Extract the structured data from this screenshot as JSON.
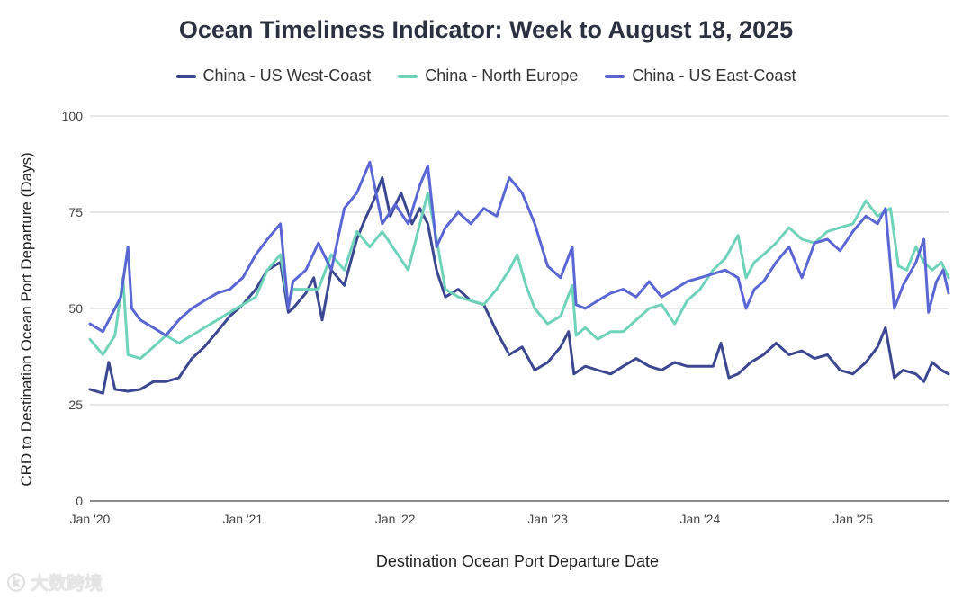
{
  "chart_data": {
    "type": "line",
    "title": "Ocean Timeliness Indicator: Week to August 18, 2025",
    "xlabel": "Destination Ocean Port Departure Date",
    "ylabel": "CRD to Destination Ocean Port Departure (Days)",
    "ylim": [
      0,
      100
    ],
    "yticks": [
      0,
      25,
      50,
      75,
      100
    ],
    "xlim": [
      "2020-01-01",
      "2025-08-18"
    ],
    "xticks": [
      {
        "date": "2020-01-01",
        "label": "Jan '20"
      },
      {
        "date": "2021-01-01",
        "label": "Jan '21"
      },
      {
        "date": "2022-01-01",
        "label": "Jan '22"
      },
      {
        "date": "2023-01-01",
        "label": "Jan '23"
      },
      {
        "date": "2024-01-01",
        "label": "Jan '24"
      },
      {
        "date": "2025-01-01",
        "label": "Jan '25"
      }
    ],
    "grid": true,
    "legend_position": "top",
    "series": [
      {
        "name": "China - US West-Coast",
        "color": "#3b4891",
        "points": [
          [
            "2020-01-01",
            29
          ],
          [
            "2020-02-01",
            28
          ],
          [
            "2020-02-15",
            36
          ],
          [
            "2020-03-01",
            29
          ],
          [
            "2020-04-01",
            28.5
          ],
          [
            "2020-05-01",
            29
          ],
          [
            "2020-06-01",
            31
          ],
          [
            "2020-07-01",
            31
          ],
          [
            "2020-08-01",
            32
          ],
          [
            "2020-09-01",
            37
          ],
          [
            "2020-10-01",
            40
          ],
          [
            "2020-11-01",
            44
          ],
          [
            "2020-12-01",
            48
          ],
          [
            "2021-01-01",
            51
          ],
          [
            "2021-02-01",
            55
          ],
          [
            "2021-03-01",
            60
          ],
          [
            "2021-04-01",
            62
          ],
          [
            "2021-04-20",
            49
          ],
          [
            "2021-05-01",
            50
          ],
          [
            "2021-06-01",
            54
          ],
          [
            "2021-06-20",
            58
          ],
          [
            "2021-07-10",
            47
          ],
          [
            "2021-08-01",
            60
          ],
          [
            "2021-09-01",
            56
          ],
          [
            "2021-10-01",
            68
          ],
          [
            "2021-10-20",
            73
          ],
          [
            "2021-11-10",
            78
          ],
          [
            "2021-12-01",
            84
          ],
          [
            "2021-12-20",
            74
          ],
          [
            "2022-01-15",
            80
          ],
          [
            "2022-02-10",
            72
          ],
          [
            "2022-03-01",
            76
          ],
          [
            "2022-03-20",
            72
          ],
          [
            "2022-04-10",
            60
          ],
          [
            "2022-05-01",
            53
          ],
          [
            "2022-06-01",
            55
          ],
          [
            "2022-07-01",
            52
          ],
          [
            "2022-08-01",
            51
          ],
          [
            "2022-09-01",
            44
          ],
          [
            "2022-10-01",
            38
          ],
          [
            "2022-11-01",
            40
          ],
          [
            "2022-12-01",
            34
          ],
          [
            "2023-01-01",
            36
          ],
          [
            "2023-02-01",
            40
          ],
          [
            "2023-02-20",
            44
          ],
          [
            "2023-03-05",
            33
          ],
          [
            "2023-04-01",
            35
          ],
          [
            "2023-05-01",
            34
          ],
          [
            "2023-06-01",
            33
          ],
          [
            "2023-07-01",
            35
          ],
          [
            "2023-08-01",
            37
          ],
          [
            "2023-09-01",
            35
          ],
          [
            "2023-10-01",
            34
          ],
          [
            "2023-11-01",
            36
          ],
          [
            "2023-12-01",
            35
          ],
          [
            "2024-01-01",
            35
          ],
          [
            "2024-02-01",
            35
          ],
          [
            "2024-02-20",
            41
          ],
          [
            "2024-03-10",
            32
          ],
          [
            "2024-04-01",
            33
          ],
          [
            "2024-05-01",
            36
          ],
          [
            "2024-06-01",
            38
          ],
          [
            "2024-07-01",
            41
          ],
          [
            "2024-08-01",
            38
          ],
          [
            "2024-09-01",
            39
          ],
          [
            "2024-10-01",
            37
          ],
          [
            "2024-11-01",
            38
          ],
          [
            "2024-12-01",
            34
          ],
          [
            "2025-01-01",
            33
          ],
          [
            "2025-02-01",
            36
          ],
          [
            "2025-03-01",
            40
          ],
          [
            "2025-03-20",
            45
          ],
          [
            "2025-04-10",
            32
          ],
          [
            "2025-05-01",
            34
          ],
          [
            "2025-06-01",
            33
          ],
          [
            "2025-06-20",
            31
          ],
          [
            "2025-07-10",
            36
          ],
          [
            "2025-08-01",
            34
          ],
          [
            "2025-08-18",
            33
          ]
        ]
      },
      {
        "name": "China - North Europe",
        "color": "#6ed3b9",
        "points": [
          [
            "2020-01-01",
            42
          ],
          [
            "2020-02-01",
            38
          ],
          [
            "2020-03-01",
            43
          ],
          [
            "2020-03-20",
            58
          ],
          [
            "2020-04-01",
            38
          ],
          [
            "2020-05-01",
            37
          ],
          [
            "2020-06-01",
            40
          ],
          [
            "2020-07-01",
            43
          ],
          [
            "2020-08-01",
            41
          ],
          [
            "2020-09-01",
            43
          ],
          [
            "2020-10-01",
            45
          ],
          [
            "2020-11-01",
            47
          ],
          [
            "2020-12-01",
            49
          ],
          [
            "2021-01-01",
            51
          ],
          [
            "2021-02-01",
            53
          ],
          [
            "2021-03-01",
            60
          ],
          [
            "2021-04-01",
            64
          ],
          [
            "2021-04-20",
            51
          ],
          [
            "2021-05-01",
            55
          ],
          [
            "2021-06-01",
            55
          ],
          [
            "2021-07-01",
            55
          ],
          [
            "2021-08-01",
            64
          ],
          [
            "2021-09-01",
            60
          ],
          [
            "2021-10-01",
            70
          ],
          [
            "2021-11-01",
            66
          ],
          [
            "2021-12-01",
            70
          ],
          [
            "2022-01-01",
            65
          ],
          [
            "2022-02-01",
            60
          ],
          [
            "2022-03-01",
            72
          ],
          [
            "2022-03-20",
            80
          ],
          [
            "2022-04-10",
            68
          ],
          [
            "2022-05-01",
            55
          ],
          [
            "2022-06-01",
            53
          ],
          [
            "2022-07-01",
            52
          ],
          [
            "2022-08-01",
            51
          ],
          [
            "2022-09-01",
            55
          ],
          [
            "2022-10-01",
            60
          ],
          [
            "2022-10-20",
            64
          ],
          [
            "2022-11-10",
            56
          ],
          [
            "2022-12-01",
            50
          ],
          [
            "2023-01-01",
            46
          ],
          [
            "2023-02-01",
            48
          ],
          [
            "2023-03-01",
            56
          ],
          [
            "2023-03-10",
            43
          ],
          [
            "2023-04-01",
            45
          ],
          [
            "2023-05-01",
            42
          ],
          [
            "2023-06-01",
            44
          ],
          [
            "2023-07-01",
            44
          ],
          [
            "2023-08-01",
            47
          ],
          [
            "2023-09-01",
            50
          ],
          [
            "2023-10-01",
            51
          ],
          [
            "2023-11-01",
            46
          ],
          [
            "2023-12-01",
            52
          ],
          [
            "2024-01-01",
            55
          ],
          [
            "2024-02-01",
            60
          ],
          [
            "2024-03-01",
            63
          ],
          [
            "2024-04-01",
            69
          ],
          [
            "2024-04-20",
            58
          ],
          [
            "2024-05-10",
            62
          ],
          [
            "2024-06-01",
            64
          ],
          [
            "2024-07-01",
            67
          ],
          [
            "2024-08-01",
            71
          ],
          [
            "2024-09-01",
            68
          ],
          [
            "2024-10-01",
            67
          ],
          [
            "2024-11-01",
            70
          ],
          [
            "2024-12-01",
            71
          ],
          [
            "2025-01-01",
            72
          ],
          [
            "2025-02-01",
            78
          ],
          [
            "2025-03-01",
            74
          ],
          [
            "2025-04-01",
            76
          ],
          [
            "2025-04-20",
            61
          ],
          [
            "2025-05-10",
            60
          ],
          [
            "2025-06-01",
            66
          ],
          [
            "2025-06-20",
            62
          ],
          [
            "2025-07-10",
            60
          ],
          [
            "2025-08-01",
            62
          ],
          [
            "2025-08-18",
            58
          ]
        ]
      },
      {
        "name": "China - US East-Coast",
        "color": "#5a66d3",
        "points": [
          [
            "2020-01-01",
            46
          ],
          [
            "2020-02-01",
            44
          ],
          [
            "2020-03-01",
            50
          ],
          [
            "2020-03-15",
            53
          ],
          [
            "2020-04-01",
            66
          ],
          [
            "2020-04-10",
            50
          ],
          [
            "2020-05-01",
            47
          ],
          [
            "2020-06-01",
            45
          ],
          [
            "2020-07-01",
            43
          ],
          [
            "2020-08-01",
            47
          ],
          [
            "2020-09-01",
            50
          ],
          [
            "2020-10-01",
            52
          ],
          [
            "2020-11-01",
            54
          ],
          [
            "2020-12-01",
            55
          ],
          [
            "2021-01-01",
            58
          ],
          [
            "2021-02-01",
            64
          ],
          [
            "2021-03-01",
            68
          ],
          [
            "2021-04-01",
            72
          ],
          [
            "2021-04-20",
            50
          ],
          [
            "2021-05-01",
            57
          ],
          [
            "2021-06-01",
            60
          ],
          [
            "2021-07-01",
            67
          ],
          [
            "2021-08-01",
            60
          ],
          [
            "2021-09-01",
            76
          ],
          [
            "2021-10-01",
            80
          ],
          [
            "2021-11-01",
            88
          ],
          [
            "2021-12-01",
            72
          ],
          [
            "2022-01-01",
            77
          ],
          [
            "2022-02-01",
            72
          ],
          [
            "2022-03-01",
            82
          ],
          [
            "2022-03-20",
            87
          ],
          [
            "2022-04-10",
            66
          ],
          [
            "2022-05-01",
            71
          ],
          [
            "2022-06-01",
            75
          ],
          [
            "2022-07-01",
            72
          ],
          [
            "2022-08-01",
            76
          ],
          [
            "2022-09-01",
            74
          ],
          [
            "2022-10-01",
            84
          ],
          [
            "2022-11-01",
            80
          ],
          [
            "2022-12-01",
            72
          ],
          [
            "2023-01-01",
            61
          ],
          [
            "2023-02-01",
            58
          ],
          [
            "2023-03-01",
            66
          ],
          [
            "2023-03-10",
            51
          ],
          [
            "2023-04-01",
            50
          ],
          [
            "2023-05-01",
            52
          ],
          [
            "2023-06-01",
            54
          ],
          [
            "2023-07-01",
            55
          ],
          [
            "2023-08-01",
            53
          ],
          [
            "2023-09-01",
            57
          ],
          [
            "2023-10-01",
            53
          ],
          [
            "2023-11-01",
            55
          ],
          [
            "2023-12-01",
            57
          ],
          [
            "2024-01-01",
            58
          ],
          [
            "2024-02-01",
            59
          ],
          [
            "2024-03-01",
            60
          ],
          [
            "2024-04-01",
            58
          ],
          [
            "2024-04-20",
            50
          ],
          [
            "2024-05-10",
            55
          ],
          [
            "2024-06-01",
            57
          ],
          [
            "2024-07-01",
            62
          ],
          [
            "2024-08-01",
            66
          ],
          [
            "2024-09-01",
            58
          ],
          [
            "2024-10-01",
            67
          ],
          [
            "2024-11-01",
            68
          ],
          [
            "2024-12-01",
            65
          ],
          [
            "2025-01-01",
            70
          ],
          [
            "2025-02-01",
            74
          ],
          [
            "2025-03-01",
            72
          ],
          [
            "2025-03-20",
            76
          ],
          [
            "2025-04-10",
            50
          ],
          [
            "2025-05-01",
            56
          ],
          [
            "2025-06-01",
            62
          ],
          [
            "2025-06-20",
            68
          ],
          [
            "2025-07-01",
            49
          ],
          [
            "2025-07-20",
            57
          ],
          [
            "2025-08-05",
            60
          ],
          [
            "2025-08-18",
            54
          ]
        ]
      }
    ]
  },
  "watermark": {
    "text": "大数跨境",
    "logo": "ⓚ"
  }
}
